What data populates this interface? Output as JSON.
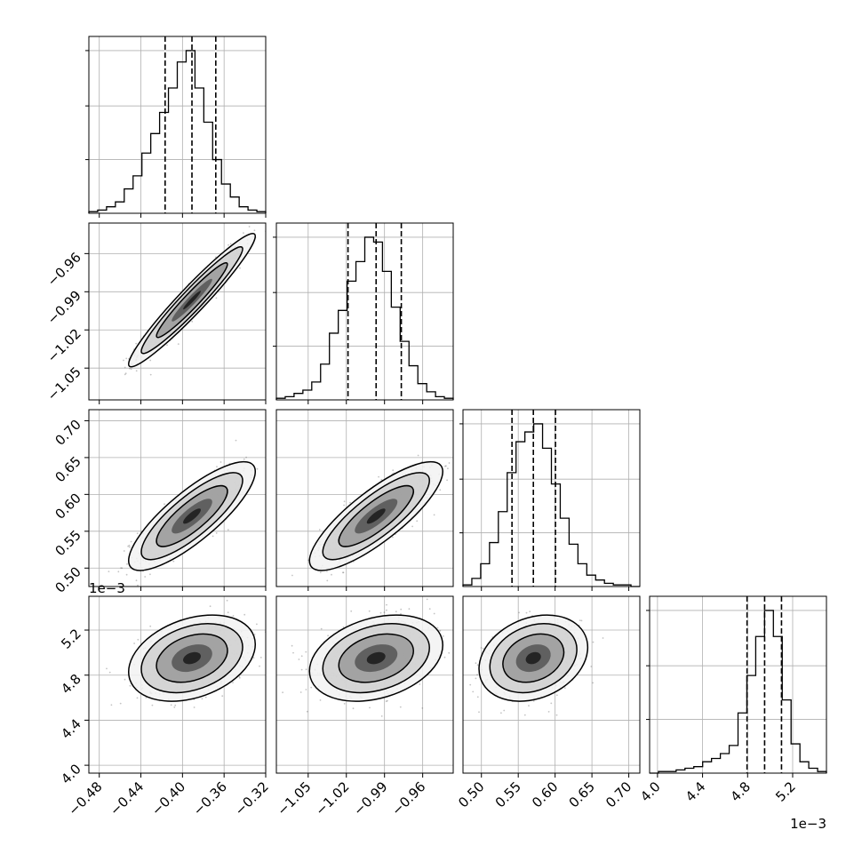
{
  "chart_data": {
    "type": "corner",
    "grid": true,
    "n_params": 4,
    "params": [
      {
        "range": [
          -0.49,
          -0.32
        ],
        "ticks": [
          -0.48,
          -0.44,
          -0.4,
          -0.36,
          -0.32
        ],
        "tick_labels": [
          "−0.48",
          "−0.44",
          "−0.40",
          "−0.36",
          "−0.32"
        ],
        "quantiles": [
          -0.4167,
          -0.3909,
          -0.368
        ],
        "offset": ""
      },
      {
        "range": [
          -1.075,
          -0.936
        ],
        "ticks": [
          -1.05,
          -1.02,
          -0.99,
          -0.96
        ],
        "tick_labels": [
          "−1.05",
          "−1.02",
          "−0.99",
          "−0.96"
        ],
        "quantiles": [
          -1.0187,
          -0.9966,
          -0.9768
        ],
        "offset": ""
      },
      {
        "range": [
          0.475,
          0.715
        ],
        "ticks": [
          0.5,
          0.55,
          0.6,
          0.65,
          0.7
        ],
        "tick_labels": [
          "0.50",
          "0.55",
          "0.60",
          "0.65",
          "0.70"
        ],
        "quantiles": [
          0.5415,
          0.5705,
          0.6005
        ],
        "offset": ""
      },
      {
        "range": [
          3.93,
          5.5
        ],
        "ticks": [
          4.0,
          4.4,
          4.8,
          5.2
        ],
        "tick_labels": [
          "4.0",
          "4.4",
          "4.8",
          "5.2"
        ],
        "quantiles": [
          4.795,
          4.951,
          5.101
        ],
        "offset": "1e−3"
      }
    ],
    "histograms": [
      [
        0.01,
        0.02,
        0.04,
        0.07,
        0.15,
        0.23,
        0.37,
        0.49,
        0.62,
        0.77,
        0.93,
        1.0,
        0.77,
        0.56,
        0.33,
        0.18,
        0.1,
        0.04,
        0.02,
        0.01
      ],
      [
        0.01,
        0.02,
        0.04,
        0.06,
        0.11,
        0.22,
        0.41,
        0.55,
        0.73,
        0.85,
        1.0,
        0.97,
        0.79,
        0.57,
        0.36,
        0.21,
        0.1,
        0.05,
        0.02,
        0.01
      ],
      [
        0.01,
        0.05,
        0.14,
        0.27,
        0.46,
        0.7,
        0.89,
        0.95,
        1.0,
        0.85,
        0.63,
        0.42,
        0.26,
        0.14,
        0.07,
        0.04,
        0.02,
        0.01,
        0.01,
        0.0
      ],
      [
        0.0,
        0.01,
        0.01,
        0.02,
        0.03,
        0.04,
        0.07,
        0.09,
        0.12,
        0.17,
        0.37,
        0.6,
        0.84,
        1.0,
        0.84,
        0.45,
        0.18,
        0.07,
        0.03,
        0.01
      ]
    ],
    "correlations": [
      [
        1.0,
        0.96,
        0.82,
        0.32
      ],
      [
        0.96,
        1.0,
        0.82,
        0.3
      ],
      [
        0.82,
        0.82,
        1.0,
        0.25
      ],
      [
        0.32,
        0.3,
        0.25,
        1.0
      ]
    ]
  }
}
